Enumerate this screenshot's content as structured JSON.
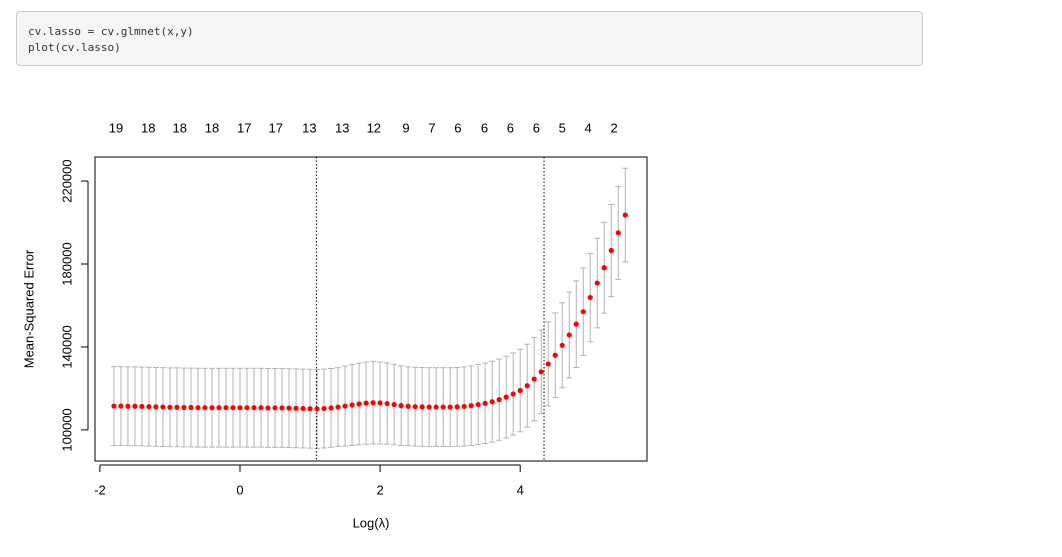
{
  "code": [
    "cv.lasso = cv.glmnet(x,y)",
    "plot(cv.lasso)"
  ],
  "chart_data": {
    "type": "errorbar-scatter",
    "xlabel": "Log(λ)",
    "ylabel": "Mean-Squared Error",
    "xlim": [
      -2.07,
      5.81
    ],
    "ylim": [
      85000,
      231600
    ],
    "xticks": [
      -2,
      0,
      2,
      4
    ],
    "yticks": [
      100000,
      140000,
      180000,
      220000
    ],
    "top_ticks": [
      {
        "value": -1.77,
        "label": "19"
      },
      {
        "value": -1.31,
        "label": "18"
      },
      {
        "value": -0.86,
        "label": "18"
      },
      {
        "value": -0.4,
        "label": "18"
      },
      {
        "value": 0.06,
        "label": "17"
      },
      {
        "value": 0.51,
        "label": "17"
      },
      {
        "value": 0.99,
        "label": "13"
      },
      {
        "value": 1.46,
        "label": "13"
      },
      {
        "value": 1.91,
        "label": "12"
      },
      {
        "value": 2.37,
        "label": "9"
      },
      {
        "value": 2.74,
        "label": "7"
      },
      {
        "value": 3.11,
        "label": "6"
      },
      {
        "value": 3.49,
        "label": "6"
      },
      {
        "value": 3.86,
        "label": "6"
      },
      {
        "value": 4.23,
        "label": "6"
      },
      {
        "value": 4.6,
        "label": "5"
      },
      {
        "value": 4.97,
        "label": "4"
      },
      {
        "value": 5.34,
        "label": "2"
      }
    ],
    "vlines": [
      1.09,
      4.34
    ],
    "point_color": "#ff0000",
    "bar_color": "#b3b3b3",
    "x": [
      -1.8,
      -1.7,
      -1.6,
      -1.5,
      -1.4,
      -1.3,
      -1.2,
      -1.1,
      -1.0,
      -0.9,
      -0.8,
      -0.7,
      -0.6,
      -0.5,
      -0.4,
      -0.3,
      -0.2,
      -0.1,
      0.0,
      0.1,
      0.2,
      0.3,
      0.4,
      0.5,
      0.6,
      0.7,
      0.8,
      0.9,
      1.0,
      1.1,
      1.2,
      1.3,
      1.4,
      1.5,
      1.6,
      1.7,
      1.8,
      1.9,
      2.0,
      2.1,
      2.2,
      2.3,
      2.4,
      2.5,
      2.6,
      2.7,
      2.8,
      2.9,
      3.0,
      3.1,
      3.2,
      3.3,
      3.4,
      3.5,
      3.6,
      3.7,
      3.8,
      3.9,
      4.0,
      4.1,
      4.2,
      4.3,
      4.4,
      4.5,
      4.6,
      4.7,
      4.8,
      4.9,
      5.0,
      5.1,
      5.2,
      5.3,
      5.4,
      5.5
    ],
    "values": [
      111500,
      111500,
      111400,
      111400,
      111300,
      111200,
      111100,
      111000,
      110900,
      110900,
      110800,
      110800,
      110700,
      110700,
      110700,
      110700,
      110700,
      110700,
      110700,
      110700,
      110700,
      110700,
      110600,
      110600,
      110600,
      110500,
      110400,
      110300,
      110200,
      110100,
      110300,
      110600,
      111000,
      111500,
      112000,
      112500,
      112900,
      113100,
      113000,
      112700,
      112200,
      111700,
      111400,
      111200,
      111100,
      111000,
      111000,
      111000,
      111000,
      111100,
      111300,
      111700,
      112200,
      112800,
      113600,
      114600,
      115800,
      117300,
      119000,
      121300,
      124500,
      128000,
      131800,
      136000,
      140800,
      145800,
      151000,
      157000,
      163800,
      170800,
      178200,
      186500,
      195000,
      203600
    ],
    "errors": [
      19000,
      19000,
      19000,
      19000,
      19000,
      19000,
      19000,
      19000,
      19000,
      19000,
      19000,
      19000,
      19000,
      19000,
      19000,
      19000,
      19000,
      19000,
      19000,
      19000,
      19000,
      19000,
      19000,
      19000,
      19000,
      19000,
      19000,
      19000,
      19000,
      19000,
      19000,
      19000,
      19000,
      19300,
      19500,
      19700,
      19800,
      19900,
      19800,
      19600,
      19400,
      19200,
      19000,
      19000,
      19000,
      19000,
      19000,
      19000,
      19000,
      19000,
      19100,
      19200,
      19300,
      19400,
      19500,
      19600,
      19700,
      19800,
      19900,
      20000,
      20100,
      20200,
      20300,
      20400,
      20500,
      20700,
      20900,
      21100,
      21300,
      21600,
      21900,
      22200,
      22400,
      22600
    ]
  }
}
